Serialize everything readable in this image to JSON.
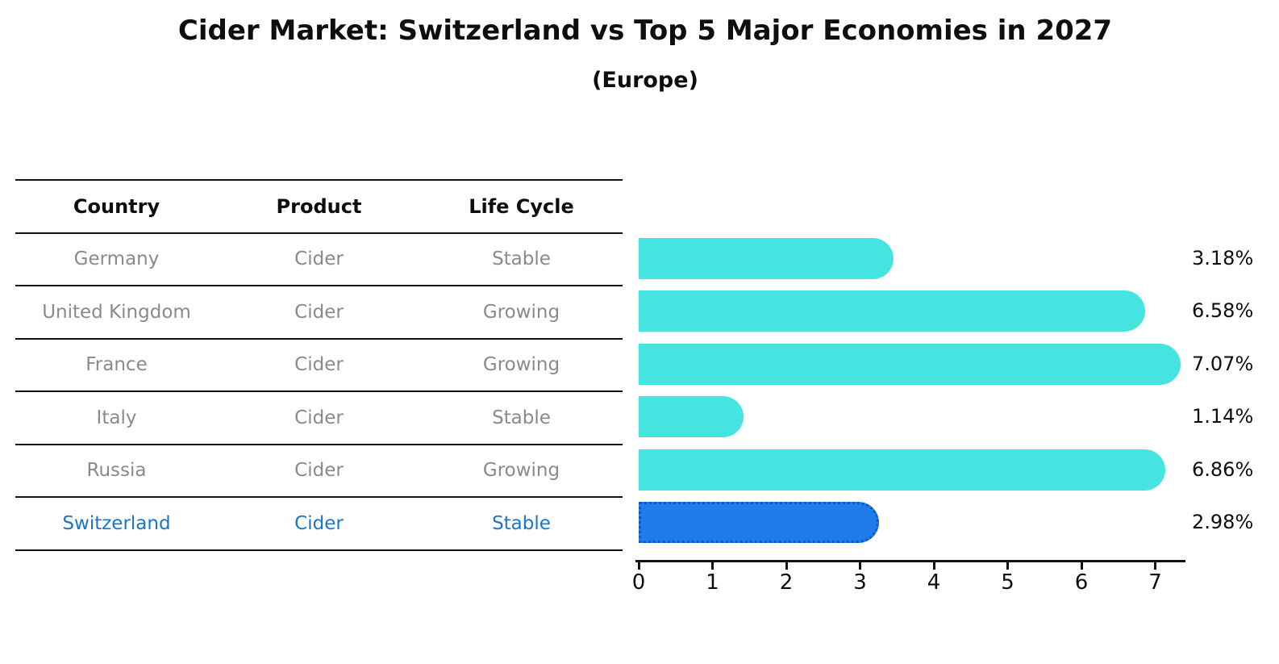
{
  "table": {
    "headers": [
      "Country",
      "Product",
      "Life Cycle"
    ],
    "rows": [
      {
        "country": "Germany",
        "product": "Cider",
        "life_cycle": "Stable",
        "highlight": false
      },
      {
        "country": "United Kingdom",
        "product": "Cider",
        "life_cycle": "Growing",
        "highlight": false
      },
      {
        "country": "France",
        "product": "Cider",
        "life_cycle": "Growing",
        "highlight": false
      },
      {
        "country": "Italy",
        "product": "Cider",
        "life_cycle": "Stable",
        "highlight": false
      },
      {
        "country": "Russia",
        "product": "Cider",
        "life_cycle": "Growing",
        "highlight": false
      },
      {
        "country": "Switzerland",
        "product": "Cider",
        "life_cycle": "Stable",
        "highlight": true
      }
    ]
  },
  "chart_data": {
    "type": "bar",
    "orientation": "horizontal",
    "title": "Cider Market: Switzerland vs Top 5 Major Economies in 2027",
    "subtitle": "(Europe)",
    "categories": [
      "Germany",
      "United Kingdom",
      "France",
      "Italy",
      "Russia",
      "Switzerland"
    ],
    "values": [
      3.18,
      6.58,
      7.07,
      1.14,
      6.86,
      2.98
    ],
    "value_labels": [
      "3.18%",
      "6.58%",
      "7.07%",
      "1.14%",
      "6.86%",
      "2.98%"
    ],
    "unit": "%",
    "xticks": [
      "0",
      "1",
      "2",
      "3",
      "4",
      "5",
      "6",
      "7"
    ],
    "xlim": [
      0,
      7.45
    ],
    "grid": false,
    "legend": false,
    "highlight_index": 5
  },
  "colors": {
    "bar": "#46e4e0",
    "highlight_bar": "#1f7ce8",
    "highlight_border": "#1356cc",
    "highlight_text": "#1c74c9",
    "muted_text": "#8a8a8a",
    "line": "#111111"
  }
}
